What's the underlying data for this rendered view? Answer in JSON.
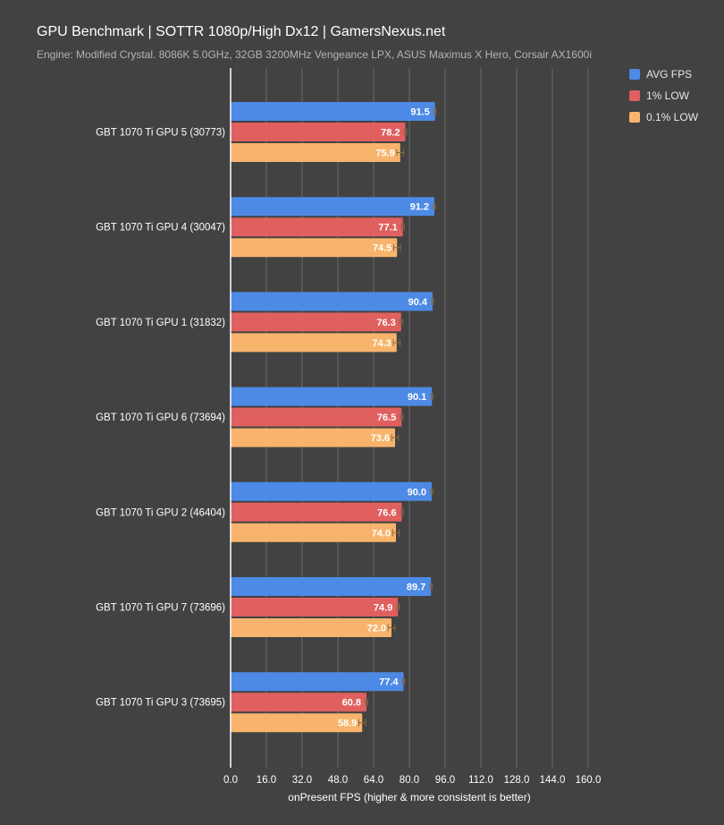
{
  "title": "GPU Benchmark | SOTTR 1080p/High Dx12 | GamersNexus.net",
  "subtitle": "Engine: Modified Crystal. 8086K 5.0GHz, 32GB 3200MHz Vengeance LPX, ASUS Maximus X Hero, Corsair AX1600i",
  "colors": {
    "background": "#424242",
    "grid": "#6b6b6b",
    "axis": "#ffffff",
    "text": "#ffffff"
  },
  "chart_data": {
    "type": "bar",
    "orientation": "horizontal",
    "title": "GPU Benchmark | SOTTR 1080p/High Dx12 | GamersNexus.net",
    "subtitle": "Engine: Modified Crystal. 8086K 5.0GHz, 32GB 3200MHz Vengeance LPX, ASUS Maximus X Hero, Corsair AX1600i",
    "xlabel": "onPresent FPS (higher & more consistent is better)",
    "ylabel": "",
    "xlim": [
      0,
      160
    ],
    "xticks": [
      "0.0",
      "16.0",
      "32.0",
      "48.0",
      "64.0",
      "80.0",
      "96.0",
      "112.0",
      "128.0",
      "144.0",
      "160.0"
    ],
    "grid": true,
    "legend_position": "top-right",
    "categories": [
      "GBT 1070 Ti GPU 5 (30773)",
      "GBT 1070 Ti GPU 4 (30047)",
      "GBT 1070 Ti GPU 1 (31832)",
      "GBT 1070 Ti GPU 6 (73694)",
      "GBT 1070 Ti GPU 2 (46404)",
      "GBT 1070 Ti GPU 7 (73696)",
      "GBT 1070 Ti GPU 3 (73695)"
    ],
    "series": [
      {
        "name": "AVG FPS",
        "color": "#4d8ae6",
        "values": [
          91.5,
          91.2,
          90.4,
          90.1,
          90.0,
          89.7,
          77.4
        ],
        "labels": [
          "91.5",
          "91.2",
          "90.4",
          "90.1",
          "90.0",
          "89.7",
          "77.4"
        ],
        "error": [
          0.4,
          0.4,
          0.4,
          0.4,
          0.4,
          0.4,
          0.4
        ]
      },
      {
        "name": "1% LOW",
        "color": "#e06060",
        "values": [
          78.2,
          77.1,
          76.3,
          76.5,
          76.6,
          74.9,
          60.8
        ],
        "labels": [
          "78.2",
          "77.1",
          "76.3",
          "76.5",
          "76.6",
          "74.9",
          "60.8"
        ],
        "error": [
          0.6,
          0.6,
          0.6,
          0.6,
          0.6,
          0.6,
          0.6
        ]
      },
      {
        "name": "0.1% LOW",
        "color": "#f8b46c",
        "values": [
          75.9,
          74.5,
          74.3,
          73.6,
          74.0,
          72.0,
          58.9
        ],
        "labels": [
          "75.9",
          "74.5",
          "74.3",
          "73.6",
          "74.0",
          "72.0",
          "58.9"
        ],
        "error": [
          1.5,
          1.5,
          1.5,
          1.5,
          1.5,
          1.5,
          1.5
        ]
      }
    ]
  },
  "legend": [
    {
      "label": "AVG FPS",
      "color": "#4d8ae6"
    },
    {
      "label": "1% LOW",
      "color": "#e06060"
    },
    {
      "label": "0.1% LOW",
      "color": "#f8b46c"
    }
  ]
}
